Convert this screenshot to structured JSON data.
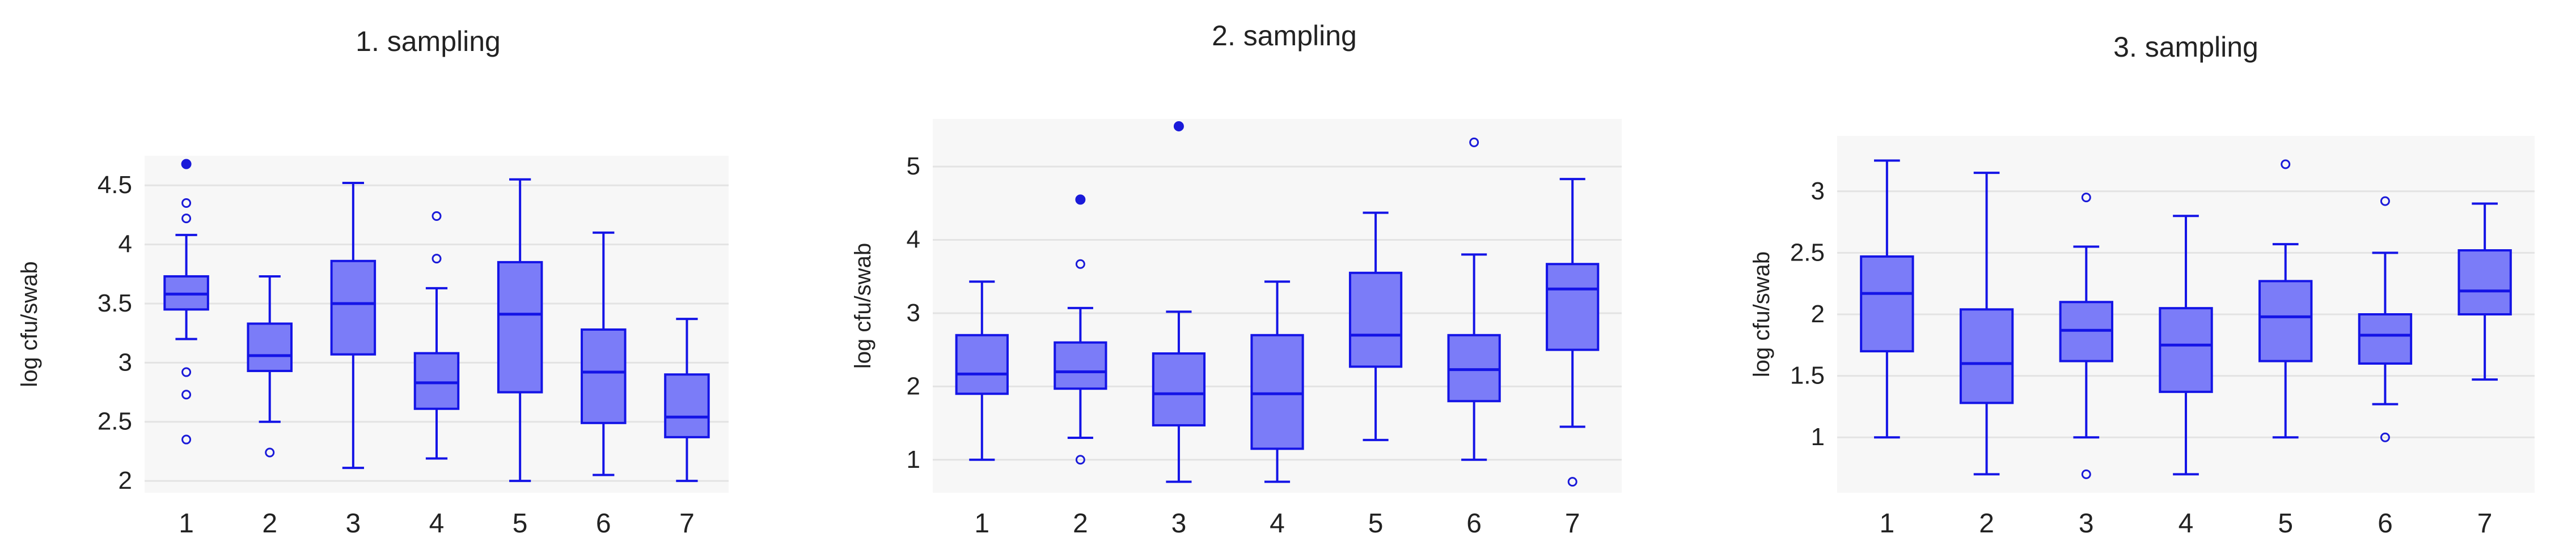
{
  "colors": {
    "box_fill": "#7b7cf8",
    "box_stroke": "#1414e6",
    "outlier": "#1a1ad9",
    "plot_background": "#f7f7f7",
    "grid": "#e3e3e3",
    "text": "#222222"
  },
  "chart_data": [
    {
      "type": "box",
      "title": "1. sampling",
      "ylabel": "log cfu/swab",
      "xlabel": "",
      "categories": [
        "1",
        "2",
        "3",
        "4",
        "5",
        "6",
        "7"
      ],
      "ylim": [
        1.9,
        4.75
      ],
      "yticks": [
        2,
        2.5,
        3,
        3.5,
        4,
        4.5
      ],
      "ytick_labels": [
        "2",
        "2.5",
        "3",
        "3.5",
        "4",
        "4.5"
      ],
      "grid": true,
      "boxes": [
        {
          "whisker_low": 3.2,
          "q1": 3.45,
          "median": 3.58,
          "q3": 3.73,
          "whisker_high": 4.08,
          "outliers": [
            2.35,
            2.73,
            2.92,
            4.22,
            4.35
          ],
          "extreme_outliers": [
            4.68
          ]
        },
        {
          "whisker_low": 2.5,
          "q1": 2.93,
          "median": 3.06,
          "q3": 3.33,
          "whisker_high": 3.73,
          "outliers": [
            2.24
          ],
          "extreme_outliers": []
        },
        {
          "whisker_low": 2.11,
          "q1": 3.07,
          "median": 3.5,
          "q3": 3.86,
          "whisker_high": 4.52,
          "outliers": [],
          "extreme_outliers": []
        },
        {
          "whisker_low": 2.19,
          "q1": 2.61,
          "median": 2.83,
          "q3": 3.08,
          "whisker_high": 3.63,
          "outliers": [
            3.88,
            4.24
          ],
          "extreme_outliers": []
        },
        {
          "whisker_low": 2.0,
          "q1": 2.75,
          "median": 3.41,
          "q3": 3.85,
          "whisker_high": 4.55,
          "outliers": [],
          "extreme_outliers": []
        },
        {
          "whisker_low": 2.05,
          "q1": 2.49,
          "median": 2.92,
          "q3": 3.28,
          "whisker_high": 4.1,
          "outliers": [],
          "extreme_outliers": []
        },
        {
          "whisker_low": 2.0,
          "q1": 2.37,
          "median": 2.54,
          "q3": 2.9,
          "whisker_high": 3.37,
          "outliers": [],
          "extreme_outliers": []
        }
      ]
    },
    {
      "type": "box",
      "title": "2. sampling",
      "ylabel": "log cfu/swab",
      "xlabel": "",
      "categories": [
        "1",
        "2",
        "3",
        "4",
        "5",
        "6",
        "7"
      ],
      "ylim": [
        0.55,
        5.65
      ],
      "yticks": [
        1,
        2,
        3,
        4,
        5
      ],
      "ytick_labels": [
        "1",
        "2",
        "3",
        "4",
        "5"
      ],
      "grid": true,
      "boxes": [
        {
          "whisker_low": 1.0,
          "q1": 1.9,
          "median": 2.17,
          "q3": 2.7,
          "whisker_high": 3.43,
          "outliers": [],
          "extreme_outliers": []
        },
        {
          "whisker_low": 1.3,
          "q1": 1.97,
          "median": 2.2,
          "q3": 2.6,
          "whisker_high": 3.07,
          "outliers": [
            1.0,
            3.67
          ],
          "extreme_outliers": [
            4.55
          ]
        },
        {
          "whisker_low": 0.7,
          "q1": 1.47,
          "median": 1.9,
          "q3": 2.45,
          "whisker_high": 3.02,
          "outliers": [],
          "extreme_outliers": [
            5.55
          ]
        },
        {
          "whisker_low": 0.7,
          "q1": 1.15,
          "median": 1.9,
          "q3": 2.7,
          "whisker_high": 3.43,
          "outliers": [],
          "extreme_outliers": []
        },
        {
          "whisker_low": 1.27,
          "q1": 2.27,
          "median": 2.7,
          "q3": 3.55,
          "whisker_high": 4.37,
          "outliers": [],
          "extreme_outliers": []
        },
        {
          "whisker_low": 1.0,
          "q1": 1.8,
          "median": 2.23,
          "q3": 2.7,
          "whisker_high": 3.8,
          "outliers": [
            5.33
          ],
          "extreme_outliers": []
        },
        {
          "whisker_low": 1.45,
          "q1": 2.5,
          "median": 3.33,
          "q3": 3.67,
          "whisker_high": 4.83,
          "outliers": [
            0.7
          ],
          "extreme_outliers": []
        }
      ]
    },
    {
      "type": "box",
      "title": "3. sampling",
      "ylabel": "log cfu/swab",
      "xlabel": "",
      "categories": [
        "1",
        "2",
        "3",
        "4",
        "5",
        "6",
        "7"
      ],
      "ylim": [
        0.55,
        3.45
      ],
      "yticks": [
        1,
        1.5,
        2,
        2.5,
        3
      ],
      "ytick_labels": [
        "1",
        "1.5",
        "2",
        "2.5",
        "3"
      ],
      "grid": true,
      "boxes": [
        {
          "whisker_low": 1.0,
          "q1": 1.7,
          "median": 2.17,
          "q3": 2.47,
          "whisker_high": 3.25,
          "outliers": [],
          "extreme_outliers": []
        },
        {
          "whisker_low": 0.7,
          "q1": 1.28,
          "median": 1.6,
          "q3": 2.04,
          "whisker_high": 3.15,
          "outliers": [],
          "extreme_outliers": []
        },
        {
          "whisker_low": 1.0,
          "q1": 1.62,
          "median": 1.87,
          "q3": 2.1,
          "whisker_high": 2.55,
          "outliers": [
            0.7,
            2.95
          ],
          "extreme_outliers": []
        },
        {
          "whisker_low": 0.7,
          "q1": 1.37,
          "median": 1.75,
          "q3": 2.05,
          "whisker_high": 2.8,
          "outliers": [],
          "extreme_outliers": []
        },
        {
          "whisker_low": 1.0,
          "q1": 1.62,
          "median": 1.98,
          "q3": 2.27,
          "whisker_high": 2.57,
          "outliers": [
            3.22
          ],
          "extreme_outliers": []
        },
        {
          "whisker_low": 1.27,
          "q1": 1.6,
          "median": 1.83,
          "q3": 2.0,
          "whisker_high": 2.5,
          "outliers": [
            1.0,
            2.92
          ],
          "extreme_outliers": []
        },
        {
          "whisker_low": 1.47,
          "q1": 2.0,
          "median": 2.19,
          "q3": 2.52,
          "whisker_high": 2.9,
          "outliers": [],
          "extreme_outliers": []
        }
      ]
    }
  ]
}
